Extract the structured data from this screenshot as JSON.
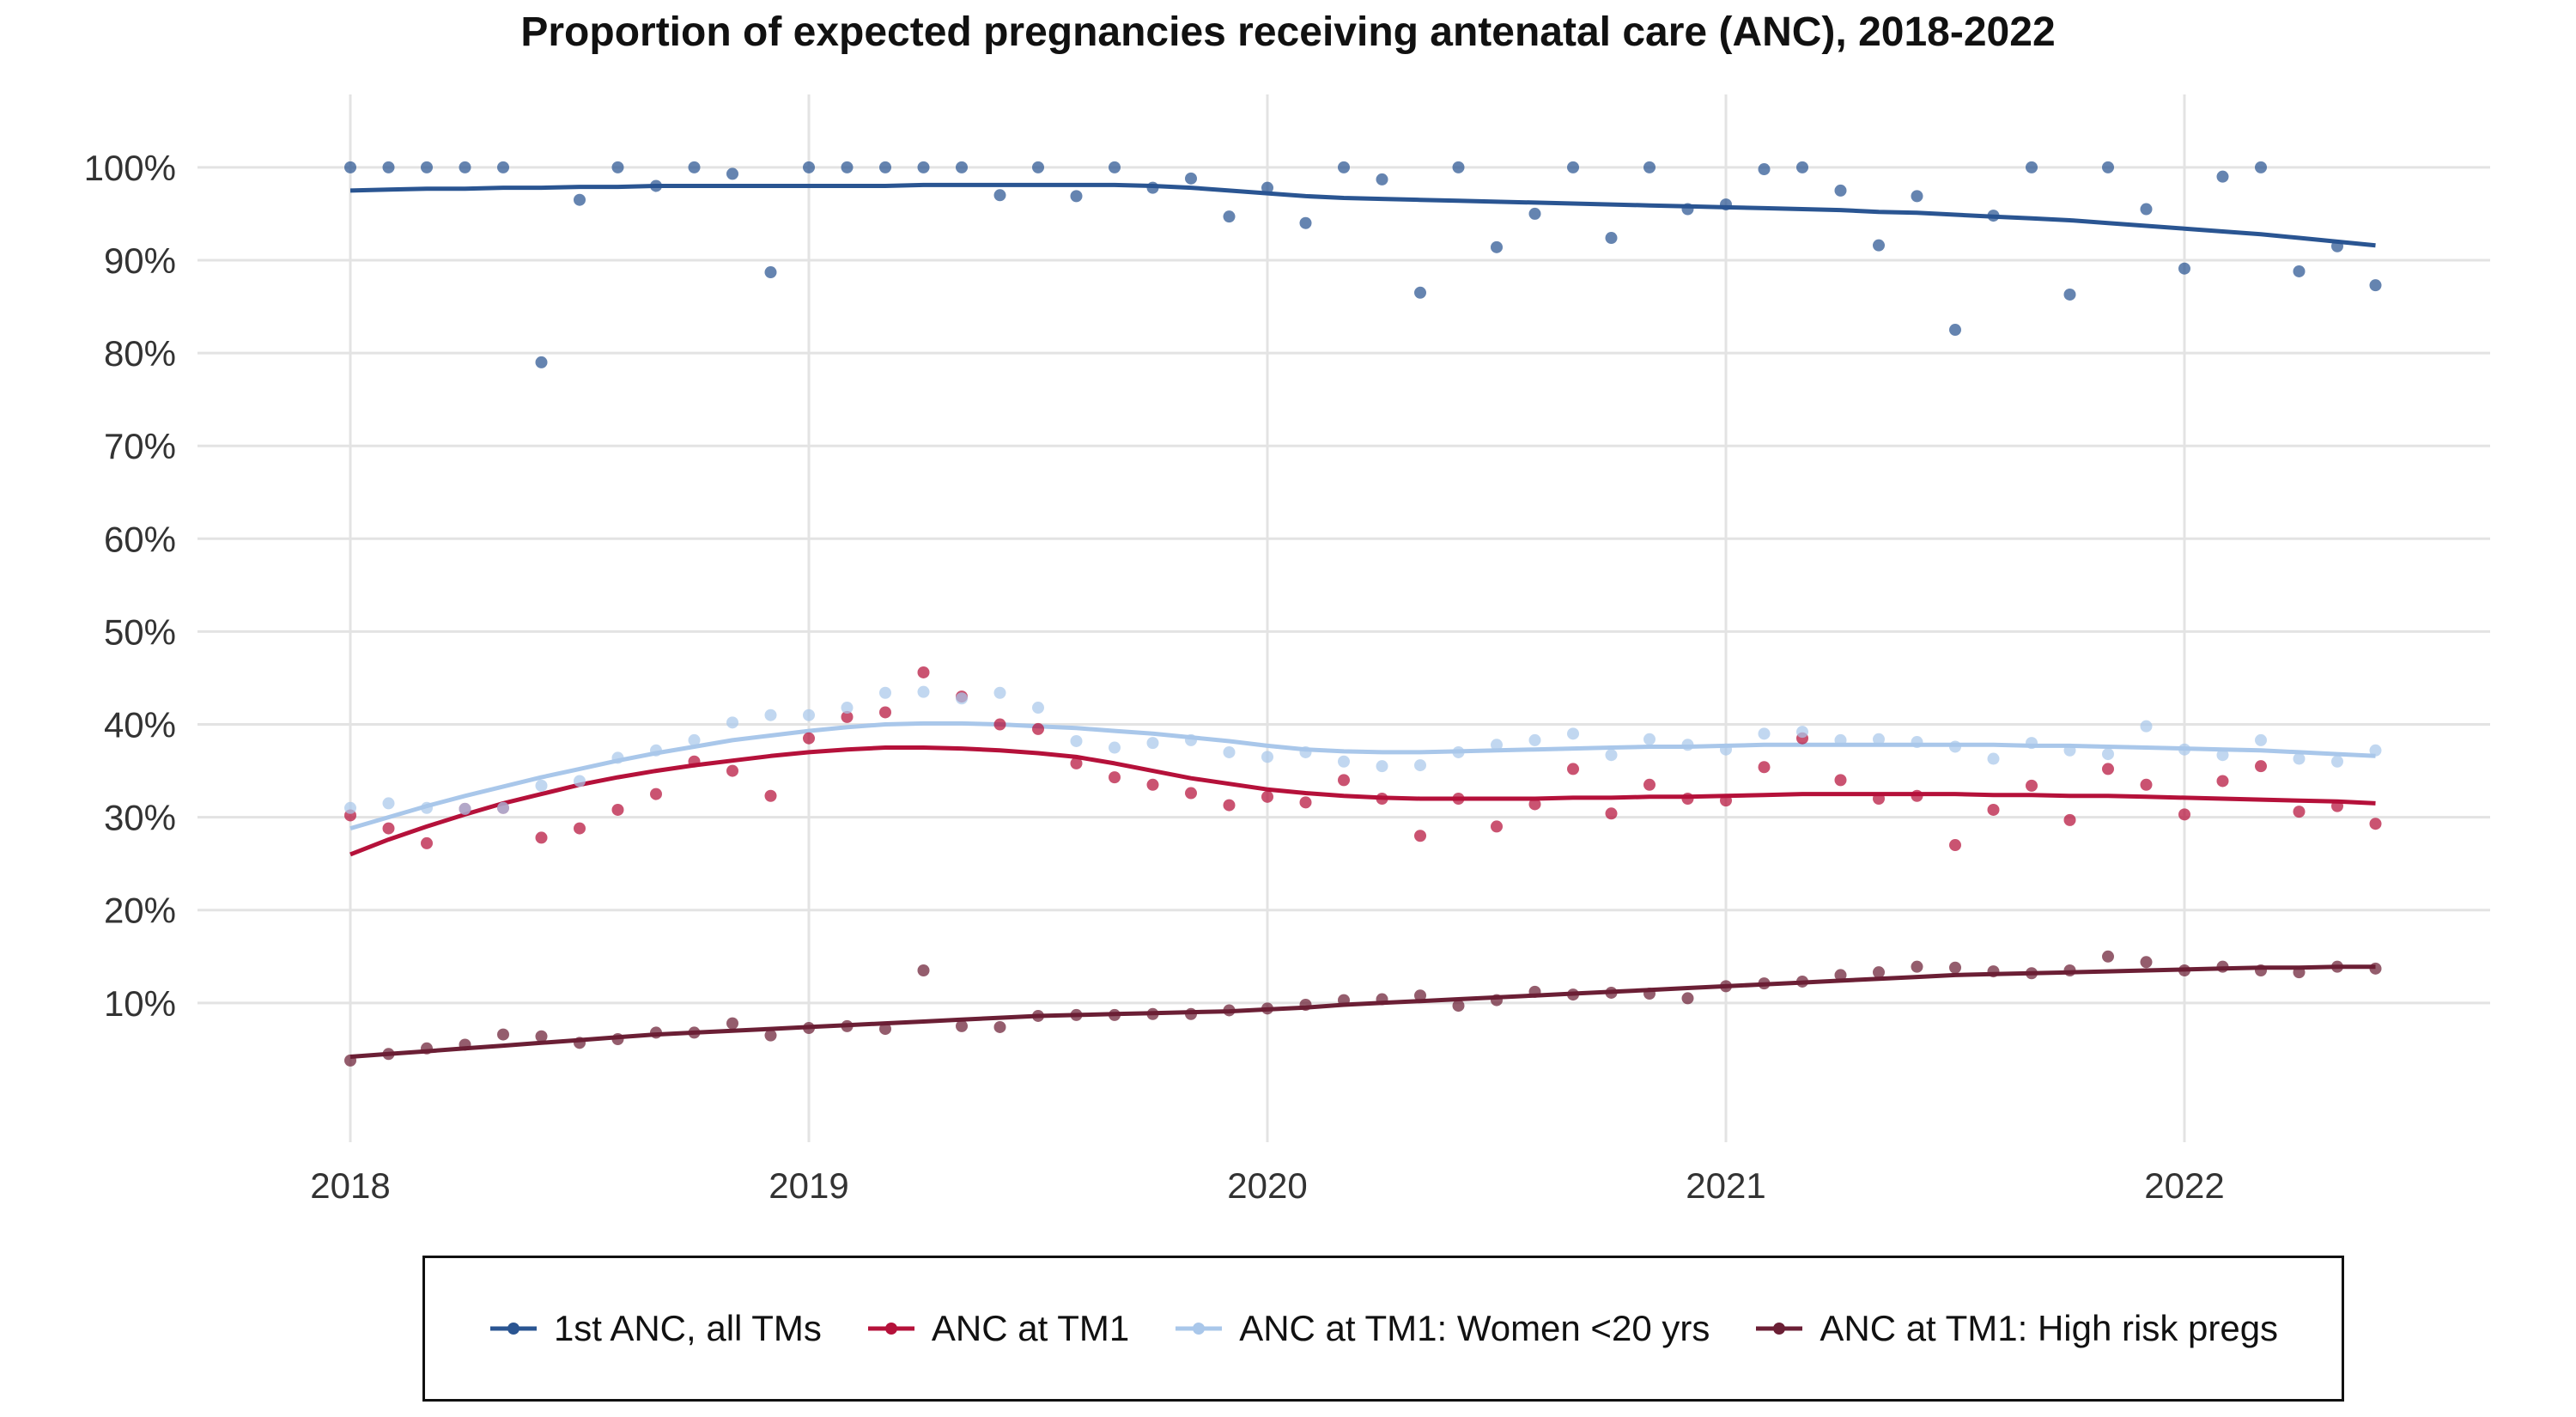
{
  "chart_data": {
    "type": "line",
    "title": "Proportion of expected pregnancies receiving antenatal care (ANC), 2018-2022",
    "xlabel": "",
    "ylabel": "",
    "x_ticks": [
      "2018",
      "2019",
      "2020",
      "2021",
      "2022"
    ],
    "y_ticks": [
      "10%",
      "20%",
      "30%",
      "40%",
      "50%",
      "60%",
      "70%",
      "80%",
      "90%",
      "100%"
    ],
    "xlim": [
      "2017-09",
      "2022-09"
    ],
    "ylim": [
      -5,
      106
    ],
    "grid": true,
    "legend_position": "bottom",
    "months": [
      "2018-01",
      "2018-02",
      "2018-03",
      "2018-04",
      "2018-05",
      "2018-06",
      "2018-07",
      "2018-08",
      "2018-09",
      "2018-10",
      "2018-11",
      "2018-12",
      "2019-01",
      "2019-02",
      "2019-03",
      "2019-04",
      "2019-05",
      "2019-06",
      "2019-07",
      "2019-08",
      "2019-09",
      "2019-10",
      "2019-11",
      "2019-12",
      "2020-01",
      "2020-02",
      "2020-03",
      "2020-04",
      "2020-05",
      "2020-06",
      "2020-07",
      "2020-08",
      "2020-09",
      "2020-10",
      "2020-11",
      "2020-12",
      "2021-01",
      "2021-02",
      "2021-03",
      "2021-04",
      "2021-05",
      "2021-06",
      "2021-07",
      "2021-08",
      "2021-09",
      "2021-10",
      "2021-11",
      "2021-12",
      "2022-01",
      "2022-02",
      "2022-03",
      "2022-04",
      "2022-05",
      "2022-06"
    ],
    "series": [
      {
        "name": "1st ANC, all TMs",
        "color": "#2a5592",
        "points": [
          100,
          100,
          100,
          100,
          100,
          79,
          96.5,
          100,
          98,
          100,
          99.3,
          88.7,
          100,
          100,
          100,
          100,
          100,
          97,
          100,
          96.9,
          100,
          97.8,
          98.8,
          94.7,
          97.8,
          94,
          100,
          98.7,
          86.5,
          100,
          91.4,
          95,
          100,
          92.4,
          100,
          95.5,
          96,
          99.8,
          100,
          97.5,
          91.6,
          96.9,
          82.5,
          94.8,
          100,
          86.3,
          100,
          95.5,
          89.1,
          99,
          100,
          88.8,
          91.5,
          87.3
        ],
        "trend": [
          97.5,
          97.6,
          97.7,
          97.7,
          97.8,
          97.8,
          97.9,
          97.9,
          98,
          98,
          98,
          98,
          98,
          98,
          98,
          98.1,
          98.1,
          98.1,
          98.1,
          98.1,
          98.1,
          98,
          97.8,
          97.5,
          97.2,
          96.9,
          96.7,
          96.6,
          96.5,
          96.4,
          96.3,
          96.2,
          96.1,
          96,
          95.9,
          95.8,
          95.7,
          95.6,
          95.5,
          95.4,
          95.2,
          95.1,
          94.9,
          94.7,
          94.5,
          94.3,
          94,
          93.7,
          93.4,
          93.1,
          92.8,
          92.4,
          92,
          91.6
        ]
      },
      {
        "name": "ANC at TM1",
        "color": "#b5113a",
        "points": [
          30.2,
          28.8,
          27.2,
          30.9,
          31,
          27.8,
          28.8,
          30.8,
          32.5,
          36,
          35,
          32.3,
          38.5,
          40.8,
          41.3,
          45.6,
          43,
          40,
          39.5,
          35.8,
          34.3,
          33.5,
          32.6,
          31.3,
          32.2,
          31.6,
          34,
          32,
          28,
          32,
          29,
          31.4,
          35.2,
          30.4,
          33.5,
          32,
          31.8,
          35.4,
          38.5,
          34,
          32,
          32.3,
          27,
          30.8,
          33.4,
          29.7,
          35.2,
          33.5,
          30.3,
          33.9,
          35.5,
          30.6,
          31.2,
          29.3
        ],
        "trend": [
          26,
          27.6,
          29,
          30.3,
          31.5,
          32.5,
          33.5,
          34.3,
          35,
          35.6,
          36.1,
          36.6,
          37,
          37.3,
          37.5,
          37.5,
          37.4,
          37.2,
          36.9,
          36.5,
          35.8,
          35,
          34.2,
          33.6,
          33,
          32.6,
          32.3,
          32.1,
          32,
          32,
          32,
          32,
          32.1,
          32.1,
          32.2,
          32.2,
          32.3,
          32.4,
          32.5,
          32.5,
          32.5,
          32.5,
          32.5,
          32.4,
          32.4,
          32.3,
          32.3,
          32.2,
          32.1,
          32,
          31.9,
          31.8,
          31.7,
          31.5
        ]
      },
      {
        "name": "ANC at TM1: Women <20 yrs",
        "color": "#a9c7ea",
        "points": [
          31,
          31.5,
          31,
          30.9,
          31,
          33.4,
          33.9,
          36.4,
          37.2,
          38.3,
          40.2,
          41,
          41,
          41.8,
          43.4,
          43.5,
          42.8,
          43.4,
          41.8,
          38.2,
          37.5,
          38,
          38.3,
          37,
          36.5,
          37,
          36,
          35.5,
          35.6,
          37,
          37.8,
          38.3,
          39,
          36.7,
          38.4,
          37.8,
          37.3,
          39,
          39.2,
          38.3,
          38.4,
          38.1,
          37.6,
          36.3,
          38,
          37.2,
          36.8,
          39.8,
          37.3,
          36.7,
          38.3,
          36.3,
          36,
          37.2
        ],
        "trend": [
          28.8,
          30,
          31.2,
          32.3,
          33.3,
          34.3,
          35.2,
          36.1,
          36.9,
          37.6,
          38.3,
          38.8,
          39.3,
          39.7,
          40,
          40.1,
          40.1,
          40,
          39.8,
          39.6,
          39.3,
          39,
          38.6,
          38.2,
          37.7,
          37.3,
          37.1,
          37,
          37,
          37.1,
          37.2,
          37.3,
          37.4,
          37.5,
          37.6,
          37.6,
          37.7,
          37.8,
          37.8,
          37.8,
          37.8,
          37.8,
          37.8,
          37.8,
          37.7,
          37.7,
          37.6,
          37.5,
          37.4,
          37.3,
          37.2,
          37,
          36.8,
          36.6
        ]
      },
      {
        "name": "ANC at TM1: High risk pregs",
        "color": "#6b1f35",
        "points": [
          3.8,
          4.5,
          5.1,
          5.5,
          6.6,
          6.4,
          5.7,
          6.1,
          6.8,
          6.8,
          7.8,
          6.5,
          7.3,
          7.5,
          7.2,
          13.5,
          7.5,
          7.4,
          8.6,
          8.7,
          8.7,
          8.8,
          8.8,
          9.2,
          9.4,
          9.8,
          10.3,
          10.4,
          10.8,
          9.7,
          10.3,
          11.2,
          10.9,
          11.1,
          11,
          10.5,
          11.8,
          12.1,
          12.3,
          13,
          13.3,
          13.9,
          13.8,
          13.4,
          13.2,
          13.5,
          15,
          14.4,
          13.5,
          13.9,
          13.5,
          13.3,
          13.9,
          13.7
        ],
        "trend": [
          4.2,
          4.5,
          4.8,
          5.1,
          5.4,
          5.7,
          6,
          6.3,
          6.6,
          6.8,
          7,
          7.2,
          7.4,
          7.6,
          7.8,
          8,
          8.2,
          8.4,
          8.6,
          8.7,
          8.8,
          8.9,
          9,
          9.1,
          9.3,
          9.5,
          9.8,
          10,
          10.2,
          10.4,
          10.6,
          10.8,
          11,
          11.2,
          11.4,
          11.6,
          11.8,
          12,
          12.2,
          12.4,
          12.6,
          12.8,
          13,
          13.1,
          13.2,
          13.3,
          13.4,
          13.5,
          13.6,
          13.7,
          13.8,
          13.8,
          13.9,
          13.9
        ]
      }
    ]
  }
}
